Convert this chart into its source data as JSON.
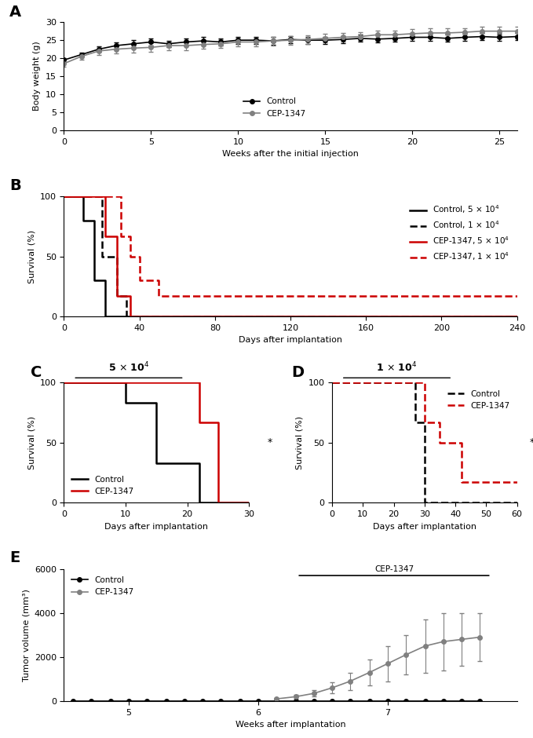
{
  "panel_A": {
    "title": "A",
    "xlabel": "Weeks after the initial injection",
    "ylabel": "Body weight (g)",
    "xlim": [
      0,
      26
    ],
    "ylim": [
      0,
      30
    ],
    "xticks": [
      0,
      5,
      10,
      15,
      20,
      25
    ],
    "yticks": [
      0,
      5,
      10,
      15,
      20,
      25,
      30
    ],
    "control_x": [
      0,
      1,
      2,
      3,
      4,
      5,
      6,
      7,
      8,
      9,
      10,
      11,
      12,
      13,
      14,
      15,
      16,
      17,
      18,
      19,
      20,
      21,
      22,
      23,
      24,
      25,
      26
    ],
    "control_y": [
      19.5,
      21.0,
      22.5,
      23.5,
      24.0,
      24.5,
      24.0,
      24.5,
      24.8,
      24.5,
      25.0,
      25.0,
      24.8,
      25.2,
      25.0,
      25.0,
      25.2,
      25.5,
      25.3,
      25.5,
      25.8,
      25.8,
      25.5,
      25.8,
      26.0,
      25.8,
      26.0
    ],
    "control_err": [
      0.5,
      0.6,
      0.8,
      0.9,
      1.0,
      1.0,
      0.9,
      1.0,
      1.0,
      0.9,
      1.0,
      1.0,
      1.0,
      1.0,
      1.0,
      1.0,
      1.0,
      1.0,
      1.0,
      1.0,
      1.0,
      1.0,
      1.0,
      1.0,
      1.0,
      1.0,
      1.0
    ],
    "cep_x": [
      0,
      1,
      2,
      3,
      4,
      5,
      6,
      7,
      8,
      9,
      10,
      11,
      12,
      13,
      14,
      15,
      16,
      17,
      18,
      19,
      20,
      21,
      22,
      23,
      24,
      25,
      26
    ],
    "cep_y": [
      18.5,
      20.5,
      22.0,
      22.5,
      22.8,
      23.0,
      23.5,
      23.5,
      23.8,
      24.0,
      24.5,
      24.5,
      24.8,
      25.0,
      25.2,
      25.5,
      25.8,
      26.0,
      26.5,
      26.5,
      26.8,
      27.0,
      27.0,
      27.2,
      27.5,
      27.5,
      27.5
    ],
    "cep_err": [
      0.8,
      0.9,
      1.0,
      1.1,
      1.2,
      1.2,
      1.2,
      1.2,
      1.2,
      1.2,
      1.2,
      1.2,
      1.2,
      1.2,
      1.2,
      1.2,
      1.2,
      1.2,
      1.2,
      1.2,
      1.2,
      1.2,
      1.2,
      1.2,
      1.2,
      1.2,
      1.2
    ],
    "control_color": "#000000",
    "cep_color": "#808080",
    "legend_control": "Control",
    "legend_cep": "CEP-1347"
  },
  "panel_B": {
    "title": "B",
    "xlabel": "Days after implantation",
    "ylabel": "Survival (%)",
    "xlim": [
      0,
      240
    ],
    "ylim": [
      0,
      100
    ],
    "xticks": [
      0,
      40,
      80,
      120,
      160,
      200,
      240
    ],
    "yticks": [
      0,
      50,
      100
    ],
    "ctrl_5e4_x": [
      0,
      10,
      10,
      16,
      16,
      22,
      22,
      30,
      30,
      240
    ],
    "ctrl_5e4_y": [
      100,
      100,
      80,
      80,
      30,
      30,
      0,
      0,
      0,
      0
    ],
    "ctrl_1e4_x": [
      0,
      20,
      20,
      28,
      28,
      33,
      33,
      240
    ],
    "ctrl_1e4_y": [
      100,
      100,
      50,
      50,
      17,
      17,
      0,
      0
    ],
    "cep_5e4_x": [
      0,
      22,
      22,
      28,
      28,
      35,
      35,
      240
    ],
    "cep_5e4_y": [
      100,
      100,
      67,
      67,
      17,
      17,
      0,
      0
    ],
    "cep_1e4_x": [
      0,
      30,
      30,
      35,
      35,
      40,
      40,
      50,
      50,
      240
    ],
    "cep_1e4_y": [
      100,
      100,
      67,
      67,
      50,
      50,
      30,
      30,
      17,
      17
    ]
  },
  "panel_C": {
    "title": "C",
    "subtitle": "5 × 10⁴",
    "xlabel": "Days after implantation",
    "ylabel": "Survival (%)",
    "xlim": [
      0,
      30
    ],
    "ylim": [
      0,
      100
    ],
    "xticks": [
      0,
      10,
      20,
      30
    ],
    "yticks": [
      0,
      50,
      100
    ],
    "ctrl_x": [
      0,
      10,
      10,
      15,
      15,
      22,
      22,
      30
    ],
    "ctrl_y": [
      100,
      100,
      83,
      83,
      33,
      33,
      0,
      0
    ],
    "cep_x": [
      0,
      22,
      22,
      25,
      25,
      28,
      28,
      30
    ],
    "cep_y": [
      100,
      100,
      67,
      67,
      0,
      0,
      0,
      0
    ],
    "ctrl_color": "#000000",
    "cep_color": "#cc0000",
    "significance": "*"
  },
  "panel_D": {
    "title": "D",
    "subtitle": "1 × 10⁴",
    "xlabel": "Days after implantation",
    "ylabel": "Survival (%)",
    "xlim": [
      0,
      60
    ],
    "ylim": [
      0,
      100
    ],
    "xticks": [
      0,
      10,
      20,
      30,
      40,
      50,
      60
    ],
    "yticks": [
      0,
      50,
      100
    ],
    "ctrl_x": [
      0,
      27,
      27,
      30,
      30,
      60
    ],
    "ctrl_y": [
      100,
      100,
      67,
      67,
      0,
      0
    ],
    "cep_x": [
      0,
      30,
      30,
      35,
      35,
      42,
      42,
      50,
      50,
      60
    ],
    "cep_y": [
      100,
      100,
      67,
      67,
      50,
      50,
      17,
      17,
      17,
      17
    ],
    "ctrl_color": "#000000",
    "cep_color": "#cc0000",
    "significance": "*"
  },
  "panel_E": {
    "title": "E",
    "xlabel": "Weeks after implantation",
    "ylabel": "Tumor volume (mm³)",
    "xlim": [
      4.5,
      8
    ],
    "ylim": [
      0,
      6000
    ],
    "xticks": [
      5,
      6,
      7
    ],
    "yticks": [
      0,
      2000,
      4000,
      6000
    ],
    "control_x": [
      4.57,
      4.71,
      4.86,
      5.0,
      5.14,
      5.29,
      5.43,
      5.57,
      5.71,
      5.86,
      6.0,
      6.14,
      6.29,
      6.43,
      6.57,
      6.71,
      6.86,
      7.0,
      7.14,
      7.29,
      7.43,
      7.57,
      7.71
    ],
    "control_y": [
      0,
      0,
      0,
      0,
      0,
      0,
      0,
      0,
      0,
      0,
      0,
      0,
      0,
      0,
      0,
      0,
      0,
      0,
      0,
      0,
      0,
      0,
      0
    ],
    "control_err": [
      0,
      0,
      0,
      0,
      0,
      0,
      0,
      0,
      0,
      0,
      0,
      0,
      0,
      0,
      0,
      0,
      0,
      0,
      0,
      0,
      0,
      0,
      0
    ],
    "cep_x": [
      6.14,
      6.29,
      6.43,
      6.57,
      6.71,
      6.86,
      7.0,
      7.14,
      7.29,
      7.43,
      7.57,
      7.71
    ],
    "cep_y": [
      100,
      200,
      350,
      600,
      900,
      1300,
      1700,
      2100,
      2500,
      2700,
      2800,
      2900
    ],
    "cep_err": [
      50,
      80,
      150,
      250,
      400,
      600,
      800,
      900,
      1200,
      1300,
      1200,
      1100
    ],
    "control_color": "#000000",
    "cep_color": "#808080",
    "legend_control": "Control",
    "legend_cep": "CEP-1347",
    "bar_start": 6.3,
    "bar_end": 7.8,
    "bar_label": "CEP-1347"
  }
}
